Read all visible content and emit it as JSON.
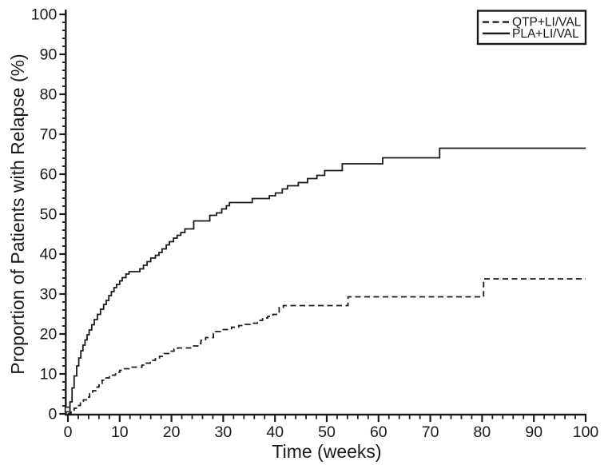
{
  "figure": {
    "background": "#ffffff",
    "ink_color": "#1a1a1a"
  },
  "chart_data": {
    "type": "line",
    "subtype": "kaplan-meier-step",
    "title": "",
    "xlabel": "Time (weeks)",
    "ylabel": "Proportion of Patients with Relapse (%)",
    "xlim": [
      0,
      100
    ],
    "ylim": [
      0,
      100
    ],
    "x_major_ticks": [
      0,
      10,
      20,
      30,
      40,
      50,
      60,
      70,
      80,
      90,
      100
    ],
    "y_major_ticks": [
      0,
      10,
      20,
      30,
      40,
      50,
      60,
      70,
      80,
      90,
      100
    ],
    "minor_tick_step": 2,
    "grid": false,
    "legend_position": "top-right",
    "origin_marker": "open-square",
    "series": [
      {
        "name": "QTP+LI/VAL",
        "style": "dashed",
        "color": "#1a1a1a",
        "points": [
          [
            0,
            0
          ],
          [
            0.6,
            0.7
          ],
          [
            1.2,
            1.4
          ],
          [
            1.8,
            2.1
          ],
          [
            2.4,
            2.7
          ],
          [
            3,
            3.5
          ],
          [
            3.6,
            4.2
          ],
          [
            4.2,
            5
          ],
          [
            4.8,
            5.8
          ],
          [
            5.4,
            6.7
          ],
          [
            6,
            7.6
          ],
          [
            6.6,
            8.4
          ],
          [
            7.2,
            9
          ],
          [
            8,
            9.7
          ],
          [
            9.2,
            10.4
          ],
          [
            10,
            10.9
          ],
          [
            10.7,
            11.3
          ],
          [
            11.8,
            11.7
          ],
          [
            14.3,
            12.2
          ],
          [
            15.1,
            12.7
          ],
          [
            15.9,
            13.4
          ],
          [
            16.9,
            13.8
          ],
          [
            17.7,
            14.4
          ],
          [
            18.6,
            15.1
          ],
          [
            19.6,
            15.7
          ],
          [
            20.5,
            16.2
          ],
          [
            21.2,
            16.5
          ],
          [
            24,
            17
          ],
          [
            25.1,
            17.6
          ],
          [
            25.7,
            18.4
          ],
          [
            26.6,
            19.1
          ],
          [
            28.1,
            20.1
          ],
          [
            28.5,
            20.6
          ],
          [
            30,
            21.1
          ],
          [
            31.6,
            21.7
          ],
          [
            33,
            22.1
          ],
          [
            34.2,
            22.4
          ],
          [
            35.2,
            22.7
          ],
          [
            36.6,
            23.4
          ],
          [
            37.6,
            24
          ],
          [
            38.6,
            24.4
          ],
          [
            39.6,
            24.9
          ],
          [
            40.8,
            26.6
          ],
          [
            41.6,
            27.1
          ],
          [
            54.1,
            29.3
          ],
          [
            80.3,
            33.8
          ],
          [
            100,
            33.8
          ]
        ]
      },
      {
        "name": "PLA+LI/VAL",
        "style": "solid",
        "color": "#1a1a1a",
        "points": [
          [
            0,
            0
          ],
          [
            0.4,
            3
          ],
          [
            0.8,
            6.5
          ],
          [
            1.2,
            9.5
          ],
          [
            1.7,
            12
          ],
          [
            2.1,
            14
          ],
          [
            2.5,
            15.8
          ],
          [
            2.9,
            17.2
          ],
          [
            3.3,
            18.5
          ],
          [
            3.7,
            19.8
          ],
          [
            4.1,
            21
          ],
          [
            4.6,
            22.3
          ],
          [
            5.1,
            23.6
          ],
          [
            5.7,
            24.9
          ],
          [
            6.3,
            26.2
          ],
          [
            6.9,
            27.4
          ],
          [
            7.4,
            28.4
          ],
          [
            7.9,
            29.6
          ],
          [
            8.4,
            30.6
          ],
          [
            8.9,
            31.6
          ],
          [
            9.4,
            32.4
          ],
          [
            10,
            33.3
          ],
          [
            10.5,
            34.1
          ],
          [
            11.2,
            35
          ],
          [
            11.8,
            35.6
          ],
          [
            13.9,
            36.3
          ],
          [
            14.6,
            37.2
          ],
          [
            15.3,
            38.1
          ],
          [
            16,
            39
          ],
          [
            16.9,
            39.7
          ],
          [
            17.6,
            40.4
          ],
          [
            18.2,
            41.3
          ],
          [
            19,
            42.3
          ],
          [
            19.6,
            43.1
          ],
          [
            20.4,
            44
          ],
          [
            21.1,
            44.7
          ],
          [
            21.8,
            45.4
          ],
          [
            22.6,
            46.3
          ],
          [
            24.3,
            48.3
          ],
          [
            27.4,
            49.7
          ],
          [
            28.7,
            50.3
          ],
          [
            29.7,
            51.3
          ],
          [
            30.6,
            52.1
          ],
          [
            31.2,
            52.9
          ],
          [
            35.6,
            53.9
          ],
          [
            38.9,
            54.6
          ],
          [
            40.1,
            55.3
          ],
          [
            41.4,
            56.3
          ],
          [
            42.4,
            57.1
          ],
          [
            44.5,
            57.9
          ],
          [
            46.3,
            58.9
          ],
          [
            48.1,
            59.7
          ],
          [
            49.6,
            60.9
          ],
          [
            53,
            62.6
          ],
          [
            60.8,
            64.1
          ],
          [
            71.8,
            66.5
          ],
          [
            100,
            66.5
          ]
        ]
      }
    ]
  }
}
